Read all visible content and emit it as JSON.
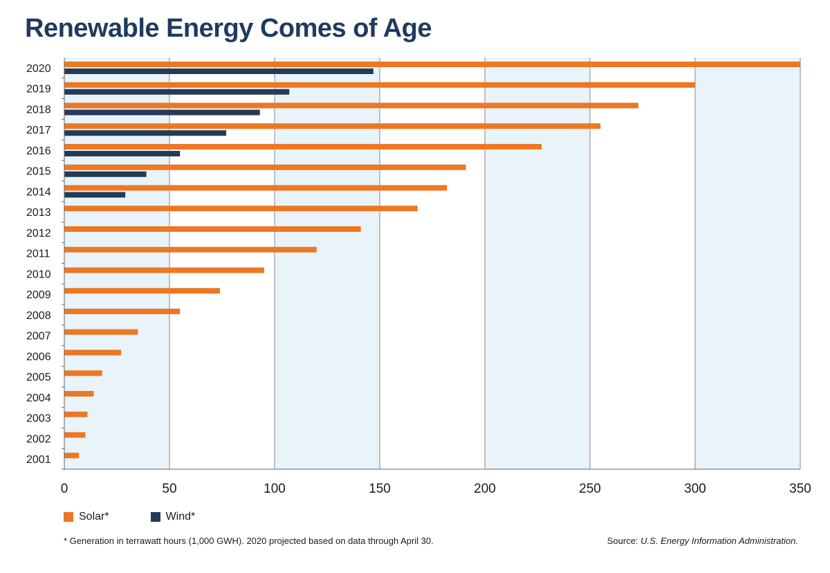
{
  "title": "Renewable Energy Comes of Age",
  "legend": {
    "solar": "Solar*",
    "wind": "Wind*"
  },
  "footnote": "* Generation in terrawatt hours (1,000 GWH). 2020 projected based on data through April 30.",
  "source": {
    "prefix": "Source: ",
    "name": "U.S. Energy Information Administration."
  },
  "colors": {
    "solar": "#ed7722",
    "wind": "#253a57",
    "band": "#e8f3fa",
    "grid": "#8a8a8a"
  },
  "chart_data": {
    "type": "bar",
    "orientation": "horizontal",
    "categories": [
      "2020",
      "2019",
      "2018",
      "2017",
      "2016",
      "2015",
      "2014",
      "2013",
      "2012",
      "2011",
      "2010",
      "2009",
      "2008",
      "2007",
      "2006",
      "2005",
      "2004",
      "2003",
      "2002",
      "2001"
    ],
    "series": [
      {
        "name": "Solar*",
        "values": [
          350,
          300,
          273,
          255,
          227,
          191,
          182,
          168,
          141,
          120,
          95,
          74,
          55,
          35,
          27,
          18,
          14,
          11,
          10,
          7
        ]
      },
      {
        "name": "Wind*",
        "values": [
          147,
          107,
          93,
          77,
          55,
          39,
          29,
          null,
          null,
          null,
          null,
          null,
          null,
          null,
          null,
          null,
          null,
          null,
          null,
          null
        ]
      }
    ],
    "xlim": [
      0,
      350
    ],
    "xticks": [
      "0",
      "50",
      "100",
      "150",
      "200",
      "250",
      "300",
      "350"
    ],
    "grid": true
  }
}
